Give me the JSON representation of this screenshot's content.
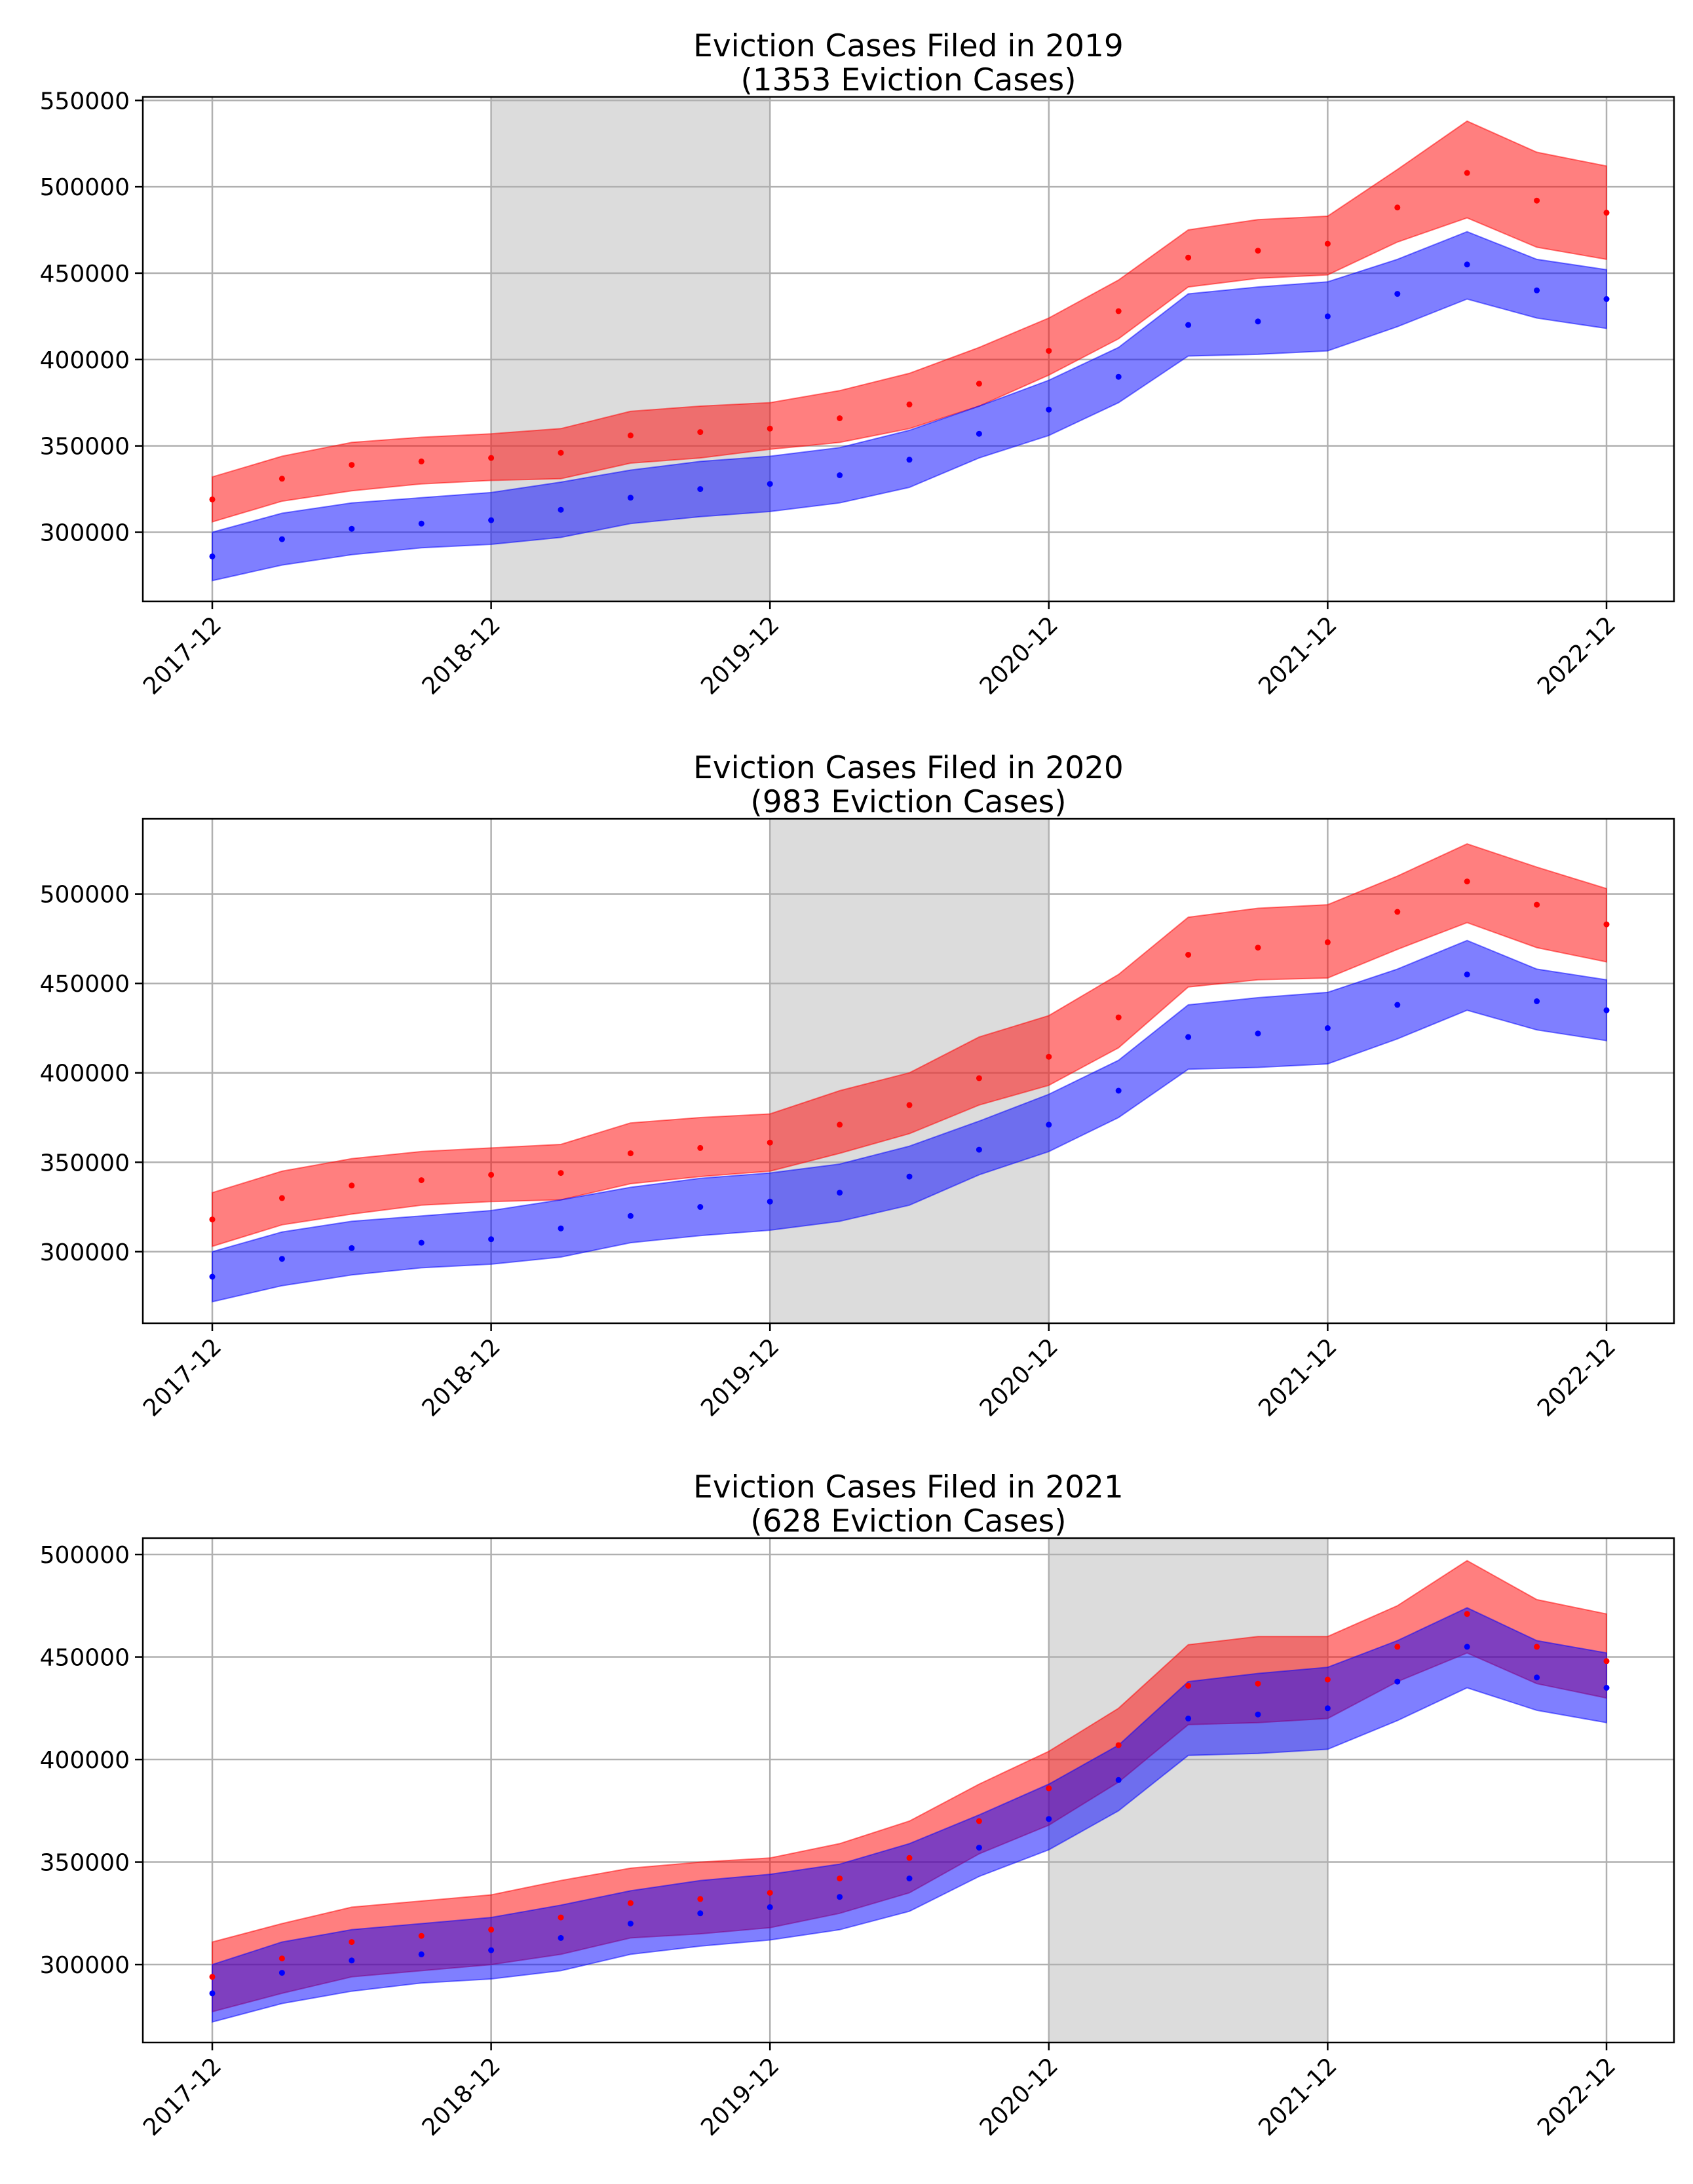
{
  "chart_data": [
    {
      "type": "area",
      "title": "Eviction Cases Filed in 2019",
      "subtitle": "(1353 Eviction Cases)",
      "x_ticks": [
        "2017-12",
        "2018-12",
        "2019-12",
        "2020-12",
        "2021-12",
        "2022-12"
      ],
      "y_ticks": [
        "300000",
        "350000",
        "400000",
        "450000",
        "500000",
        "550000"
      ],
      "ylim": [
        260000,
        552000
      ],
      "shaded_period": [
        "2018-12",
        "2019-12"
      ],
      "grid": true,
      "series": [
        {
          "color": "#ff0000",
          "x": [
            "2017-12",
            "2018-03",
            "2018-06",
            "2018-09",
            "2018-12",
            "2019-03",
            "2019-06",
            "2019-09",
            "2019-12",
            "2020-03",
            "2020-06",
            "2020-09",
            "2020-12",
            "2021-03",
            "2021-06",
            "2021-09",
            "2021-12",
            "2022-03",
            "2022-06",
            "2022-09",
            "2022-12"
          ],
          "mean": [
            319000,
            331000,
            339000,
            341000,
            343000,
            346000,
            356000,
            358000,
            360000,
            366000,
            374000,
            386000,
            405000,
            428000,
            459000,
            463000,
            467000,
            488000,
            508000,
            492000,
            485000
          ],
          "lower": [
            306000,
            318000,
            324000,
            328000,
            330000,
            331000,
            340000,
            343000,
            348000,
            352000,
            360000,
            373000,
            391000,
            412000,
            442000,
            447000,
            449000,
            468000,
            482000,
            465000,
            458000
          ],
          "upper": [
            332000,
            344000,
            352000,
            355000,
            357000,
            360000,
            370000,
            373000,
            375000,
            382000,
            392000,
            407000,
            424000,
            446000,
            475000,
            481000,
            483000,
            510000,
            538000,
            520000,
            512000
          ]
        },
        {
          "color": "#0000ff",
          "x": [
            "2017-12",
            "2018-03",
            "2018-06",
            "2018-09",
            "2018-12",
            "2019-03",
            "2019-06",
            "2019-09",
            "2019-12",
            "2020-03",
            "2020-06",
            "2020-09",
            "2020-12",
            "2021-03",
            "2021-06",
            "2021-09",
            "2021-12",
            "2022-03",
            "2022-06",
            "2022-09",
            "2022-12"
          ],
          "mean": [
            286000,
            296000,
            302000,
            305000,
            307000,
            313000,
            320000,
            325000,
            328000,
            333000,
            342000,
            357000,
            371000,
            390000,
            420000,
            422000,
            425000,
            438000,
            455000,
            440000,
            435000
          ],
          "lower": [
            272000,
            281000,
            287000,
            291000,
            293000,
            297000,
            305000,
            309000,
            312000,
            317000,
            326000,
            343000,
            356000,
            375000,
            402000,
            403000,
            405000,
            419000,
            435000,
            424000,
            418000
          ],
          "upper": [
            300000,
            311000,
            317000,
            320000,
            323000,
            329000,
            336000,
            341000,
            344000,
            349000,
            359000,
            373000,
            388000,
            407000,
            438000,
            442000,
            445000,
            458000,
            474000,
            458000,
            452000
          ]
        }
      ]
    },
    {
      "type": "area",
      "title": "Eviction Cases Filed in 2020",
      "subtitle": "(983 Eviction Cases)",
      "x_ticks": [
        "2017-12",
        "2018-12",
        "2019-12",
        "2020-12",
        "2021-12",
        "2022-12"
      ],
      "y_ticks": [
        "300000",
        "350000",
        "400000",
        "450000",
        "500000"
      ],
      "ylim": [
        260000,
        542000
      ],
      "shaded_period": [
        "2019-12",
        "2020-12"
      ],
      "grid": true,
      "series": [
        {
          "color": "#ff0000",
          "x": [
            "2017-12",
            "2018-03",
            "2018-06",
            "2018-09",
            "2018-12",
            "2019-03",
            "2019-06",
            "2019-09",
            "2019-12",
            "2020-03",
            "2020-06",
            "2020-09",
            "2020-12",
            "2021-03",
            "2021-06",
            "2021-09",
            "2021-12",
            "2022-03",
            "2022-06",
            "2022-09",
            "2022-12"
          ],
          "mean": [
            318000,
            330000,
            337000,
            340000,
            343000,
            344000,
            355000,
            358000,
            361000,
            371000,
            382000,
            397000,
            409000,
            431000,
            466000,
            470000,
            473000,
            490000,
            507000,
            494000,
            483000
          ],
          "lower": [
            303000,
            315000,
            321000,
            326000,
            328000,
            329000,
            338000,
            342000,
            345000,
            355000,
            366000,
            382000,
            393000,
            414000,
            448000,
            452000,
            453000,
            469000,
            484000,
            470000,
            462000
          ],
          "upper": [
            333000,
            345000,
            352000,
            356000,
            358000,
            360000,
            372000,
            375000,
            377000,
            390000,
            400000,
            420000,
            432000,
            455000,
            487000,
            492000,
            494000,
            510000,
            528000,
            515000,
            503000
          ]
        },
        {
          "color": "#0000ff",
          "x": [
            "2017-12",
            "2018-03",
            "2018-06",
            "2018-09",
            "2018-12",
            "2019-03",
            "2019-06",
            "2019-09",
            "2019-12",
            "2020-03",
            "2020-06",
            "2020-09",
            "2020-12",
            "2021-03",
            "2021-06",
            "2021-09",
            "2021-12",
            "2022-03",
            "2022-06",
            "2022-09",
            "2022-12"
          ],
          "mean": [
            286000,
            296000,
            302000,
            305000,
            307000,
            313000,
            320000,
            325000,
            328000,
            333000,
            342000,
            357000,
            371000,
            390000,
            420000,
            422000,
            425000,
            438000,
            455000,
            440000,
            435000
          ],
          "lower": [
            272000,
            281000,
            287000,
            291000,
            293000,
            297000,
            305000,
            309000,
            312000,
            317000,
            326000,
            343000,
            356000,
            375000,
            402000,
            403000,
            405000,
            419000,
            435000,
            424000,
            418000
          ],
          "upper": [
            300000,
            311000,
            317000,
            320000,
            323000,
            329000,
            336000,
            341000,
            344000,
            349000,
            359000,
            373000,
            388000,
            407000,
            438000,
            442000,
            445000,
            458000,
            474000,
            458000,
            452000
          ]
        }
      ]
    },
    {
      "type": "area",
      "title": "Eviction Cases Filed in 2021",
      "subtitle": "(628 Eviction Cases)",
      "x_ticks": [
        "2017-12",
        "2018-12",
        "2019-12",
        "2020-12",
        "2021-12",
        "2022-12"
      ],
      "y_ticks": [
        "300000",
        "350000",
        "400000",
        "450000",
        "500000"
      ],
      "ylim": [
        262000,
        508000
      ],
      "shaded_period": [
        "2020-12",
        "2021-12"
      ],
      "grid": true,
      "series": [
        {
          "color": "#ff0000",
          "x": [
            "2017-12",
            "2018-03",
            "2018-06",
            "2018-09",
            "2018-12",
            "2019-03",
            "2019-06",
            "2019-09",
            "2019-12",
            "2020-03",
            "2020-06",
            "2020-09",
            "2020-12",
            "2021-03",
            "2021-06",
            "2021-09",
            "2021-12",
            "2022-03",
            "2022-06",
            "2022-09",
            "2022-12"
          ],
          "mean": [
            294000,
            303000,
            311000,
            314000,
            317000,
            323000,
            330000,
            332000,
            335000,
            342000,
            352000,
            370000,
            386000,
            407000,
            436000,
            437000,
            439000,
            455000,
            471000,
            455000,
            448000
          ],
          "lower": [
            277000,
            286000,
            294000,
            297000,
            300000,
            305000,
            313000,
            315000,
            318000,
            325000,
            335000,
            354000,
            368000,
            389000,
            417000,
            418000,
            420000,
            438000,
            452000,
            437000,
            430000
          ],
          "upper": [
            311000,
            320000,
            328000,
            331000,
            334000,
            341000,
            347000,
            350000,
            352000,
            359000,
            370000,
            388000,
            404000,
            425000,
            456000,
            460000,
            460000,
            475000,
            497000,
            478000,
            471000
          ]
        },
        {
          "color": "#0000ff",
          "x": [
            "2017-12",
            "2018-03",
            "2018-06",
            "2018-09",
            "2018-12",
            "2019-03",
            "2019-06",
            "2019-09",
            "2019-12",
            "2020-03",
            "2020-06",
            "2020-09",
            "2020-12",
            "2021-03",
            "2021-06",
            "2021-09",
            "2021-12",
            "2022-03",
            "2022-06",
            "2022-09",
            "2022-12"
          ],
          "mean": [
            286000,
            296000,
            302000,
            305000,
            307000,
            313000,
            320000,
            325000,
            328000,
            333000,
            342000,
            357000,
            371000,
            390000,
            420000,
            422000,
            425000,
            438000,
            455000,
            440000,
            435000
          ],
          "lower": [
            272000,
            281000,
            287000,
            291000,
            293000,
            297000,
            305000,
            309000,
            312000,
            317000,
            326000,
            343000,
            356000,
            375000,
            402000,
            403000,
            405000,
            419000,
            435000,
            424000,
            418000
          ],
          "upper": [
            300000,
            311000,
            317000,
            320000,
            323000,
            329000,
            336000,
            341000,
            344000,
            349000,
            359000,
            373000,
            388000,
            407000,
            438000,
            442000,
            445000,
            458000,
            474000,
            458000,
            452000
          ]
        }
      ]
    }
  ]
}
